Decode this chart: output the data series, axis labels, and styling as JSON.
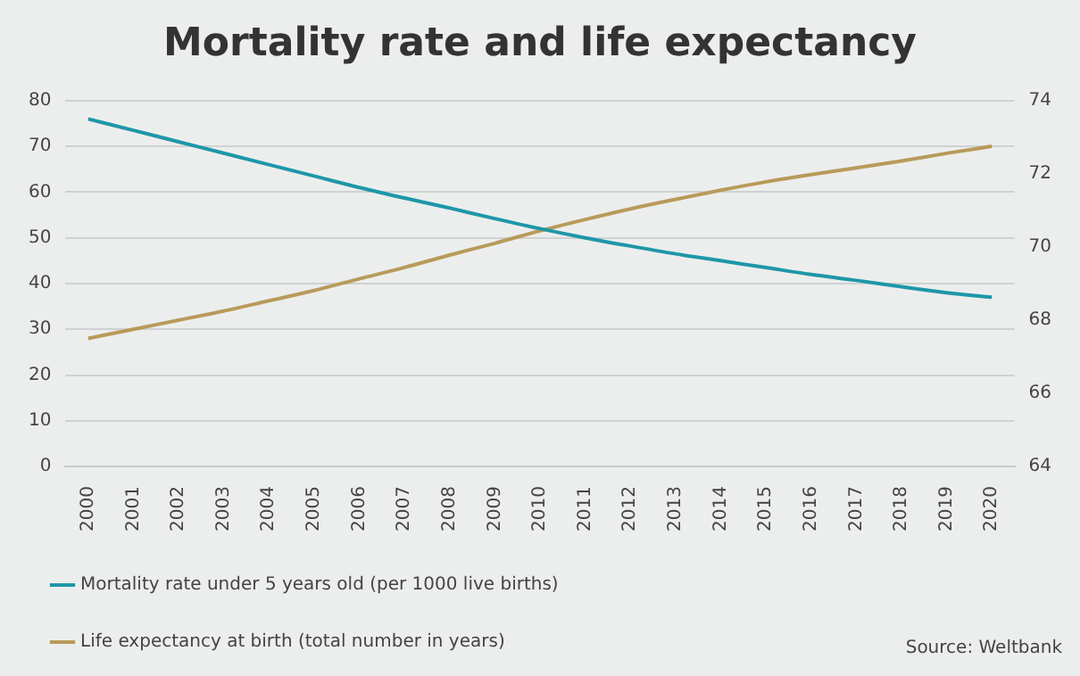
{
  "chart_data": {
    "type": "line",
    "title": "Mortality rate and life expectancy",
    "categories": [
      "2000",
      "2001",
      "2002",
      "2003",
      "2004",
      "2005",
      "2006",
      "2007",
      "2008",
      "2009",
      "2010",
      "2011",
      "2012",
      "2013",
      "2014",
      "2015",
      "2016",
      "2017",
      "2018",
      "2019",
      "2020"
    ],
    "series": [
      {
        "name": "Mortality rate under 5 years old (per 1000 live births)",
        "color": "#1e97a8",
        "values": [
          76,
          73.5,
          71,
          68.5,
          66,
          63.5,
          61,
          58.7,
          56.5,
          54.2,
          52,
          50,
          48.2,
          46.5,
          45,
          43.5,
          42,
          40.7,
          39.3,
          38,
          37
        ]
      },
      {
        "name": "Life expectancy at birth (total number in years)",
        "color": "#b89a5a",
        "axis": "y2",
        "values": [
          67.5,
          67.75,
          68.0,
          68.25,
          68.53,
          68.81,
          69.13,
          69.44,
          69.78,
          70.1,
          70.44,
          70.75,
          71.04,
          71.3,
          71.55,
          71.78,
          71.98,
          72.16,
          72.35,
          72.56,
          72.75
        ]
      }
    ],
    "ylim": [
      0,
      80
    ],
    "yticks": [
      0,
      10,
      20,
      30,
      40,
      50,
      60,
      70,
      80
    ],
    "y2lim": [
      64,
      74
    ],
    "y2ticks": [
      64,
      66,
      68,
      70,
      72,
      74
    ],
    "grid": "y",
    "legend": "bottom",
    "marker": "none",
    "line_style": "solid",
    "annotations": [
      "Source: Weltbank"
    ]
  }
}
